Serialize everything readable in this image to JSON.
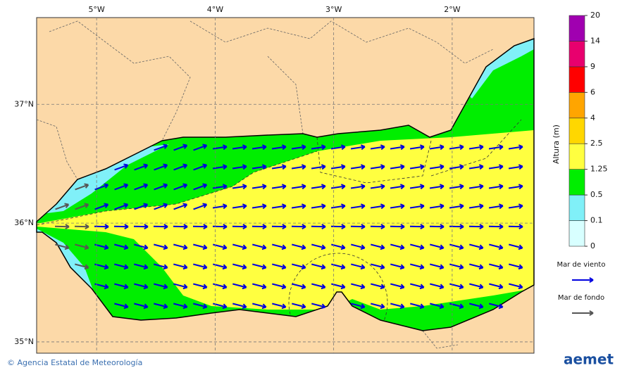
{
  "map": {
    "lon_ticks": [
      {
        "value": -5,
        "label": "5°W"
      },
      {
        "value": -4,
        "label": "4°W"
      },
      {
        "value": -3,
        "label": "3°W"
      },
      {
        "value": -2,
        "label": "2°W"
      }
    ],
    "lat_ticks": [
      {
        "value": 37,
        "label": "37°N"
      },
      {
        "value": 36,
        "label": "36°N"
      },
      {
        "value": 35,
        "label": "35°N"
      }
    ],
    "lon_range": [
      -5.506,
      -1.31
    ],
    "lat_range": [
      34.905,
      37.73
    ]
  },
  "colorbar": {
    "title": "Altura (m)",
    "levels": [
      0,
      0.1,
      0.5,
      1.25,
      2.5,
      4,
      6,
      9,
      14,
      20
    ],
    "colors": [
      "#d8ffff",
      "#80f0f8",
      "#00ee00",
      "#ffff40",
      "#ffd700",
      "#ffa500",
      "#ff0000",
      "#e8006e",
      "#a000b0"
    ]
  },
  "legend": [
    {
      "label": "Mar de viento",
      "color": "#0000e0"
    },
    {
      "label": "Mar de fondo",
      "color": "#555555"
    }
  ],
  "footer": {
    "agency": "© Agencia Estatal de Meteorología",
    "logo": "aemet"
  }
}
